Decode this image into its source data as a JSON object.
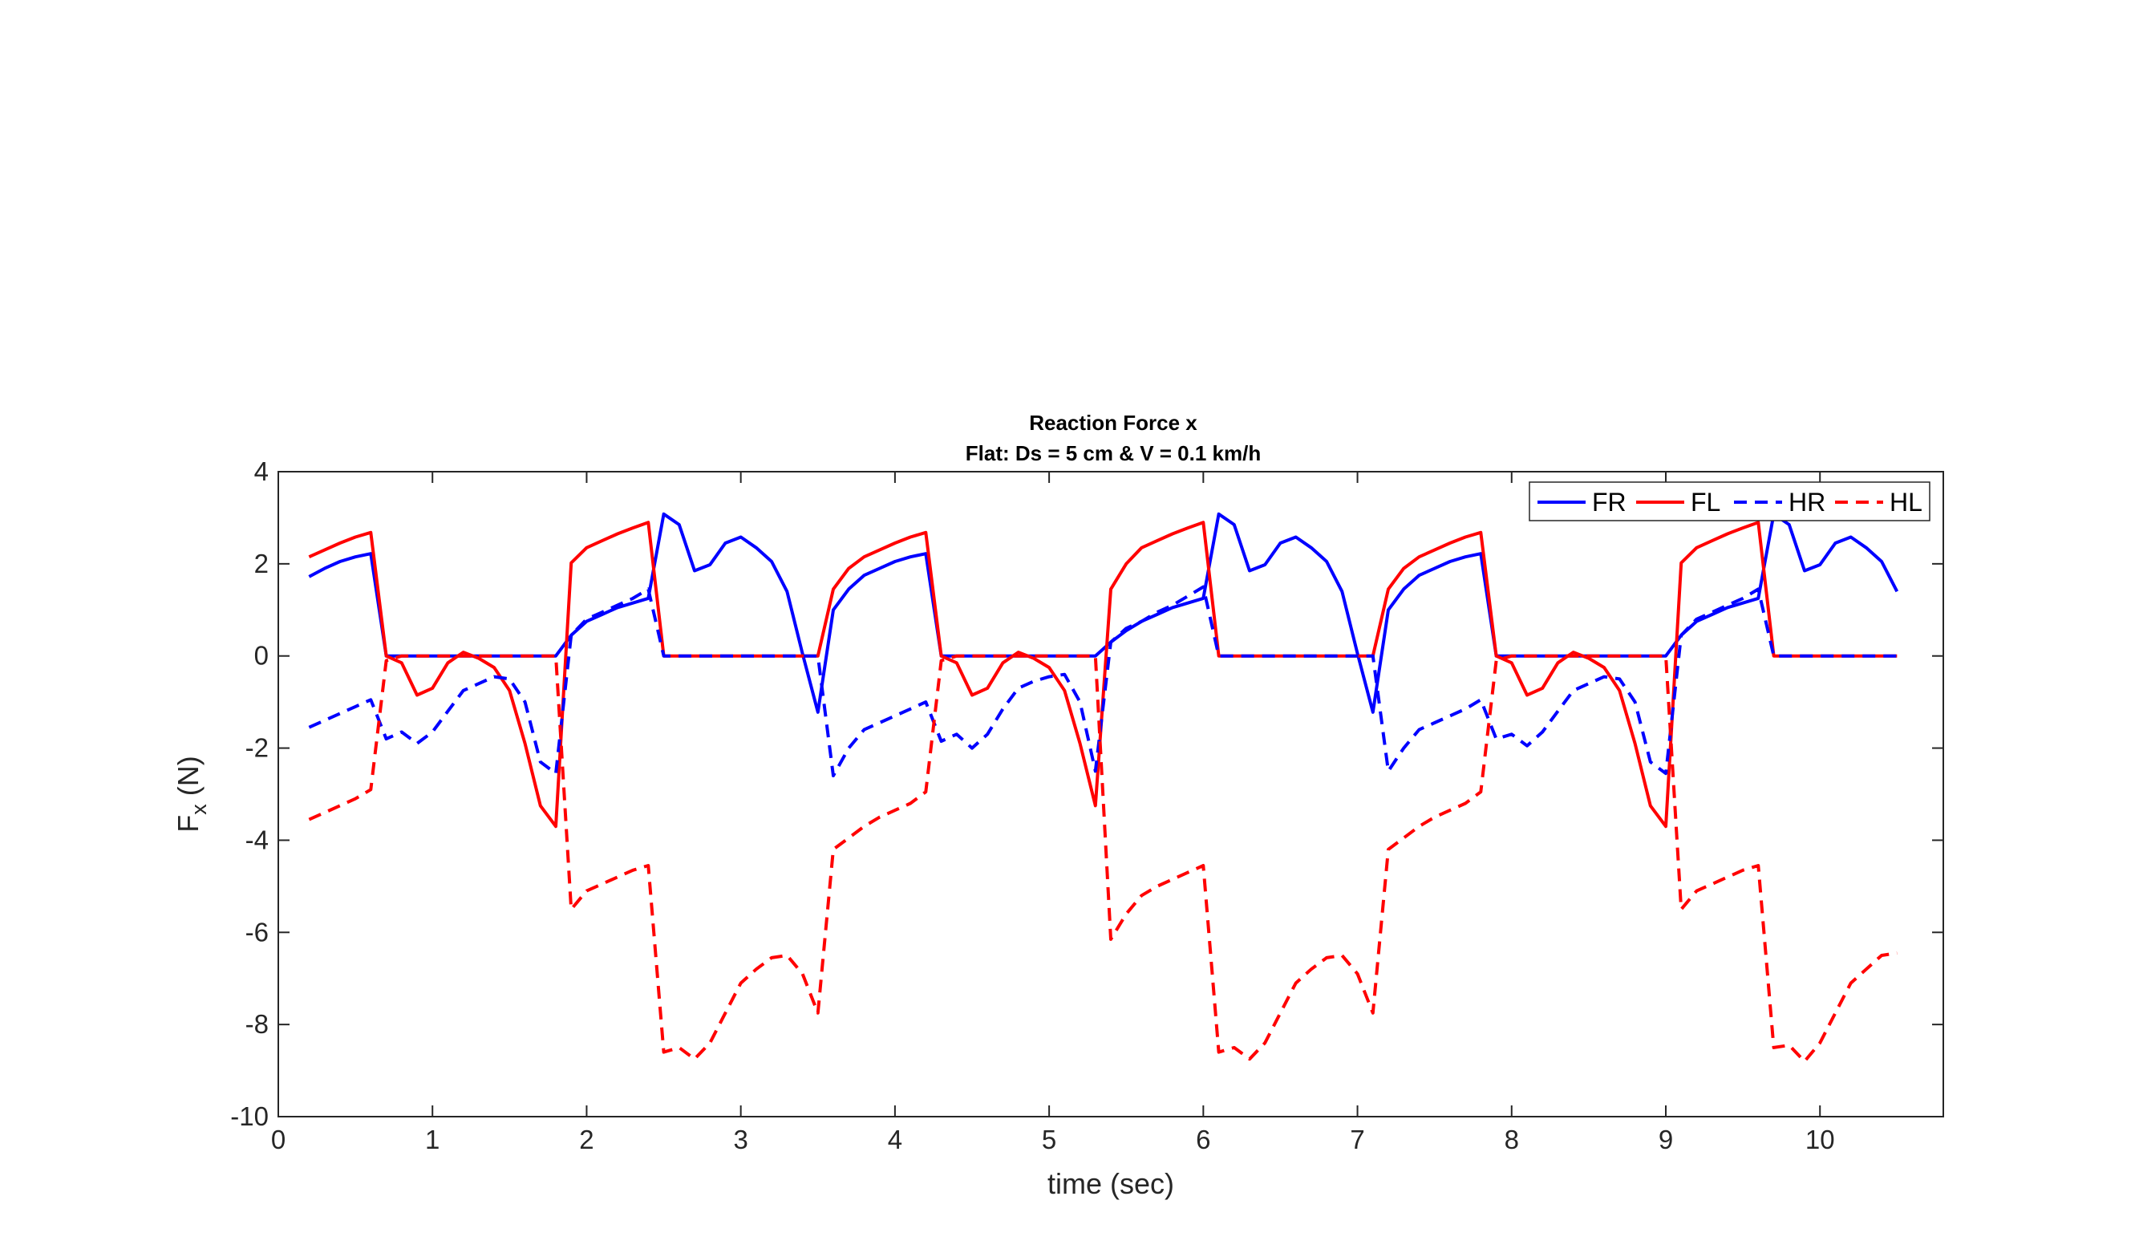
{
  "chart_data": {
    "type": "line",
    "title": "Reaction Force x",
    "subtitle": "Flat: Ds = 5 cm & V = 0.1 km/h",
    "xlabel": "time (sec)",
    "ylabel_main": "F",
    "ylabel_sub": "x",
    "ylabel_unit": " (N)",
    "xlim": [
      0,
      10.8
    ],
    "ylim": [
      -10,
      4
    ],
    "xticks": [
      0,
      1,
      2,
      3,
      4,
      5,
      6,
      7,
      8,
      9,
      10
    ],
    "yticks": [
      -10,
      -8,
      -6,
      -4,
      -2,
      0,
      2,
      4
    ],
    "grid": false,
    "legend_placement": "top-right",
    "series": [
      {
        "name": "FR",
        "color": "#0000FF",
        "style": "solid",
        "points": [
          [
            0.2,
            1.72
          ],
          [
            0.3,
            1.9
          ],
          [
            0.4,
            2.05
          ],
          [
            0.5,
            2.15
          ],
          [
            0.6,
            2.22
          ],
          [
            0.7,
            0
          ],
          [
            1.7,
            0
          ],
          [
            1.8,
            0
          ],
          [
            1.9,
            0.45
          ],
          [
            2.0,
            0.75
          ],
          [
            2.1,
            0.9
          ],
          [
            2.2,
            1.05
          ],
          [
            2.3,
            1.15
          ],
          [
            2.4,
            1.25
          ],
          [
            2.5,
            3.08
          ],
          [
            2.6,
            2.85
          ],
          [
            2.7,
            1.85
          ],
          [
            2.8,
            1.98
          ],
          [
            2.9,
            2.45
          ],
          [
            3.0,
            2.58
          ],
          [
            3.1,
            2.35
          ],
          [
            3.2,
            2.05
          ],
          [
            3.3,
            1.4
          ],
          [
            3.4,
            0.05
          ],
          [
            3.5,
            -1.22
          ],
          [
            3.6,
            1.0
          ],
          [
            3.7,
            1.45
          ],
          [
            3.8,
            1.75
          ],
          [
            3.9,
            1.9
          ],
          [
            4.0,
            2.05
          ],
          [
            4.1,
            2.15
          ],
          [
            4.2,
            2.22
          ],
          [
            4.3,
            0
          ],
          [
            5.3,
            0
          ],
          [
            5.4,
            0.3
          ],
          [
            5.5,
            0.55
          ],
          [
            5.6,
            0.75
          ],
          [
            5.7,
            0.9
          ],
          [
            5.8,
            1.05
          ],
          [
            5.9,
            1.15
          ],
          [
            6.0,
            1.25
          ],
          [
            6.1,
            3.08
          ],
          [
            6.2,
            2.85
          ],
          [
            6.3,
            1.85
          ],
          [
            6.4,
            1.98
          ],
          [
            6.5,
            2.45
          ],
          [
            6.6,
            2.58
          ],
          [
            6.7,
            2.35
          ],
          [
            6.8,
            2.05
          ],
          [
            6.9,
            1.4
          ],
          [
            7.0,
            0.05
          ],
          [
            7.1,
            -1.22
          ],
          [
            7.2,
            1.0
          ],
          [
            7.3,
            1.45
          ],
          [
            7.4,
            1.75
          ],
          [
            7.5,
            1.9
          ],
          [
            7.6,
            2.05
          ],
          [
            7.7,
            2.15
          ],
          [
            7.8,
            2.22
          ],
          [
            7.9,
            0
          ],
          [
            9.0,
            0
          ],
          [
            9.1,
            0.45
          ],
          [
            9.2,
            0.75
          ],
          [
            9.3,
            0.9
          ],
          [
            9.4,
            1.05
          ],
          [
            9.5,
            1.15
          ],
          [
            9.6,
            1.25
          ],
          [
            9.7,
            3.08
          ],
          [
            9.8,
            2.85
          ],
          [
            9.9,
            1.85
          ],
          [
            10.0,
            1.98
          ],
          [
            10.1,
            2.45
          ],
          [
            10.2,
            2.58
          ],
          [
            10.3,
            2.35
          ],
          [
            10.4,
            2.05
          ],
          [
            10.5,
            1.4
          ]
        ]
      },
      {
        "name": "FL",
        "color": "#FF0000",
        "style": "solid",
        "points": [
          [
            0.2,
            2.15
          ],
          [
            0.3,
            2.3
          ],
          [
            0.4,
            2.45
          ],
          [
            0.5,
            2.58
          ],
          [
            0.6,
            2.68
          ],
          [
            0.7,
            0
          ],
          [
            0.8,
            -0.15
          ],
          [
            0.9,
            -0.85
          ],
          [
            1.0,
            -0.7
          ],
          [
            1.1,
            -0.15
          ],
          [
            1.2,
            0.08
          ],
          [
            1.3,
            -0.05
          ],
          [
            1.4,
            -0.25
          ],
          [
            1.5,
            -0.75
          ],
          [
            1.6,
            -1.9
          ],
          [
            1.7,
            -3.25
          ],
          [
            1.8,
            -3.7
          ],
          [
            1.9,
            2.02
          ],
          [
            2.0,
            2.35
          ],
          [
            2.1,
            2.5
          ],
          [
            2.2,
            2.65
          ],
          [
            2.3,
            2.78
          ],
          [
            2.4,
            2.9
          ],
          [
            2.5,
            0
          ],
          [
            3.5,
            0
          ],
          [
            3.6,
            1.45
          ],
          [
            3.7,
            1.9
          ],
          [
            3.8,
            2.15
          ],
          [
            3.9,
            2.3
          ],
          [
            4.0,
            2.45
          ],
          [
            4.1,
            2.58
          ],
          [
            4.2,
            2.68
          ],
          [
            4.3,
            0
          ],
          [
            4.4,
            -0.15
          ],
          [
            4.5,
            -0.85
          ],
          [
            4.6,
            -0.7
          ],
          [
            4.7,
            -0.15
          ],
          [
            4.8,
            0.08
          ],
          [
            4.9,
            -0.05
          ],
          [
            5.0,
            -0.25
          ],
          [
            5.1,
            -0.75
          ],
          [
            5.2,
            -1.9
          ],
          [
            5.3,
            -3.25
          ],
          [
            5.4,
            1.45
          ],
          [
            5.5,
            2.0
          ],
          [
            5.6,
            2.35
          ],
          [
            5.7,
            2.5
          ],
          [
            5.8,
            2.65
          ],
          [
            5.9,
            2.78
          ],
          [
            6.0,
            2.9
          ],
          [
            6.1,
            0
          ],
          [
            7.1,
            0
          ],
          [
            7.2,
            1.45
          ],
          [
            7.3,
            1.9
          ],
          [
            7.4,
            2.15
          ],
          [
            7.5,
            2.3
          ],
          [
            7.6,
            2.45
          ],
          [
            7.7,
            2.58
          ],
          [
            7.8,
            2.68
          ],
          [
            7.9,
            0
          ],
          [
            8.0,
            -0.15
          ],
          [
            8.1,
            -0.85
          ],
          [
            8.2,
            -0.7
          ],
          [
            8.3,
            -0.15
          ],
          [
            8.4,
            0.08
          ],
          [
            8.5,
            -0.05
          ],
          [
            8.6,
            -0.25
          ],
          [
            8.7,
            -0.75
          ],
          [
            8.8,
            -1.9
          ],
          [
            8.9,
            -3.25
          ],
          [
            9.0,
            -3.7
          ],
          [
            9.1,
            2.02
          ],
          [
            9.2,
            2.35
          ],
          [
            9.3,
            2.5
          ],
          [
            9.4,
            2.65
          ],
          [
            9.5,
            2.78
          ],
          [
            9.6,
            2.9
          ],
          [
            9.7,
            0
          ],
          [
            10.5,
            0
          ]
        ]
      },
      {
        "name": "HR",
        "color": "#0000FF",
        "style": "dashed",
        "points": [
          [
            0.2,
            -1.55
          ],
          [
            0.3,
            -1.4
          ],
          [
            0.4,
            -1.25
          ],
          [
            0.5,
            -1.1
          ],
          [
            0.6,
            -0.95
          ],
          [
            0.7,
            -1.8
          ],
          [
            0.8,
            -1.65
          ],
          [
            0.9,
            -1.9
          ],
          [
            1.0,
            -1.65
          ],
          [
            1.1,
            -1.2
          ],
          [
            1.2,
            -0.75
          ],
          [
            1.3,
            -0.6
          ],
          [
            1.4,
            -0.45
          ],
          [
            1.5,
            -0.5
          ],
          [
            1.6,
            -1.0
          ],
          [
            1.7,
            -2.3
          ],
          [
            1.8,
            -2.55
          ],
          [
            1.9,
            0.45
          ],
          [
            2.0,
            0.8
          ],
          [
            2.1,
            0.95
          ],
          [
            2.2,
            1.1
          ],
          [
            2.3,
            1.25
          ],
          [
            2.4,
            1.45
          ],
          [
            2.5,
            0
          ],
          [
            3.5,
            0
          ],
          [
            3.6,
            -2.6
          ],
          [
            3.7,
            -2.0
          ],
          [
            3.8,
            -1.6
          ],
          [
            3.9,
            -1.45
          ],
          [
            4.0,
            -1.3
          ],
          [
            4.1,
            -1.15
          ],
          [
            4.2,
            -1.0
          ],
          [
            4.3,
            -1.85
          ],
          [
            4.4,
            -1.7
          ],
          [
            4.5,
            -2.0
          ],
          [
            4.6,
            -1.7
          ],
          [
            4.7,
            -1.15
          ],
          [
            4.8,
            -0.7
          ],
          [
            4.9,
            -0.55
          ],
          [
            5.0,
            -0.45
          ],
          [
            5.1,
            -0.4
          ],
          [
            5.2,
            -1.0
          ],
          [
            5.3,
            -2.5
          ],
          [
            5.4,
            0.3
          ],
          [
            5.5,
            0.6
          ],
          [
            5.6,
            0.75
          ],
          [
            5.7,
            0.95
          ],
          [
            5.8,
            1.1
          ],
          [
            5.9,
            1.3
          ],
          [
            6.0,
            1.5
          ],
          [
            6.1,
            0
          ],
          [
            7.1,
            0
          ],
          [
            7.2,
            -2.5
          ],
          [
            7.3,
            -2.0
          ],
          [
            7.4,
            -1.6
          ],
          [
            7.5,
            -1.45
          ],
          [
            7.6,
            -1.3
          ],
          [
            7.7,
            -1.15
          ],
          [
            7.8,
            -0.95
          ],
          [
            7.9,
            -1.8
          ],
          [
            8.0,
            -1.7
          ],
          [
            8.1,
            -1.95
          ],
          [
            8.2,
            -1.65
          ],
          [
            8.3,
            -1.2
          ],
          [
            8.4,
            -0.75
          ],
          [
            8.5,
            -0.6
          ],
          [
            8.6,
            -0.45
          ],
          [
            8.7,
            -0.5
          ],
          [
            8.8,
            -1.0
          ],
          [
            8.9,
            -2.3
          ],
          [
            9.0,
            -2.55
          ],
          [
            9.1,
            0.45
          ],
          [
            9.2,
            0.8
          ],
          [
            9.3,
            0.95
          ],
          [
            9.4,
            1.1
          ],
          [
            9.5,
            1.25
          ],
          [
            9.6,
            1.45
          ],
          [
            9.7,
            0
          ],
          [
            10.5,
            0
          ]
        ]
      },
      {
        "name": "HL",
        "color": "#FF0000",
        "style": "dashed",
        "points": [
          [
            0.2,
            -3.55
          ],
          [
            0.3,
            -3.4
          ],
          [
            0.4,
            -3.25
          ],
          [
            0.5,
            -3.1
          ],
          [
            0.6,
            -2.9
          ],
          [
            0.7,
            -0.1
          ],
          [
            0.8,
            0
          ],
          [
            1.7,
            0
          ],
          [
            1.8,
            0
          ],
          [
            1.9,
            -5.5
          ],
          [
            2.0,
            -5.1
          ],
          [
            2.1,
            -4.95
          ],
          [
            2.2,
            -4.8
          ],
          [
            2.3,
            -4.65
          ],
          [
            2.4,
            -4.55
          ],
          [
            2.5,
            -8.6
          ],
          [
            2.6,
            -8.5
          ],
          [
            2.7,
            -8.75
          ],
          [
            2.8,
            -8.4
          ],
          [
            2.9,
            -7.75
          ],
          [
            3.0,
            -7.1
          ],
          [
            3.1,
            -6.8
          ],
          [
            3.2,
            -6.55
          ],
          [
            3.3,
            -6.5
          ],
          [
            3.4,
            -6.9
          ],
          [
            3.5,
            -7.75
          ],
          [
            3.6,
            -4.2
          ],
          [
            3.7,
            -3.95
          ],
          [
            3.8,
            -3.7
          ],
          [
            3.9,
            -3.5
          ],
          [
            4.0,
            -3.35
          ],
          [
            4.1,
            -3.2
          ],
          [
            4.2,
            -2.95
          ],
          [
            4.3,
            -0.1
          ],
          [
            4.4,
            0
          ],
          [
            5.3,
            0
          ],
          [
            5.4,
            -6.15
          ],
          [
            5.5,
            -5.6
          ],
          [
            5.6,
            -5.2
          ],
          [
            5.7,
            -5.0
          ],
          [
            5.8,
            -4.85
          ],
          [
            5.9,
            -4.7
          ],
          [
            6.0,
            -4.55
          ],
          [
            6.1,
            -8.6
          ],
          [
            6.2,
            -8.5
          ],
          [
            6.3,
            -8.75
          ],
          [
            6.4,
            -8.4
          ],
          [
            6.5,
            -7.75
          ],
          [
            6.6,
            -7.1
          ],
          [
            6.7,
            -6.8
          ],
          [
            6.8,
            -6.55
          ],
          [
            6.9,
            -6.5
          ],
          [
            7.0,
            -6.9
          ],
          [
            7.1,
            -7.75
          ],
          [
            7.2,
            -4.2
          ],
          [
            7.3,
            -3.95
          ],
          [
            7.4,
            -3.7
          ],
          [
            7.5,
            -3.5
          ],
          [
            7.6,
            -3.35
          ],
          [
            7.7,
            -3.2
          ],
          [
            7.8,
            -2.95
          ],
          [
            7.9,
            -0.1
          ],
          [
            8.0,
            0
          ],
          [
            9.0,
            0
          ],
          [
            9.1,
            -5.5
          ],
          [
            9.2,
            -5.1
          ],
          [
            9.3,
            -4.95
          ],
          [
            9.4,
            -4.8
          ],
          [
            9.5,
            -4.65
          ],
          [
            9.6,
            -4.55
          ],
          [
            9.7,
            -8.5
          ],
          [
            9.8,
            -8.45
          ],
          [
            9.9,
            -8.8
          ],
          [
            10.0,
            -8.4
          ],
          [
            10.1,
            -7.75
          ],
          [
            10.2,
            -7.1
          ],
          [
            10.3,
            -6.8
          ],
          [
            10.4,
            -6.5
          ],
          [
            10.5,
            -6.45
          ]
        ]
      }
    ]
  }
}
